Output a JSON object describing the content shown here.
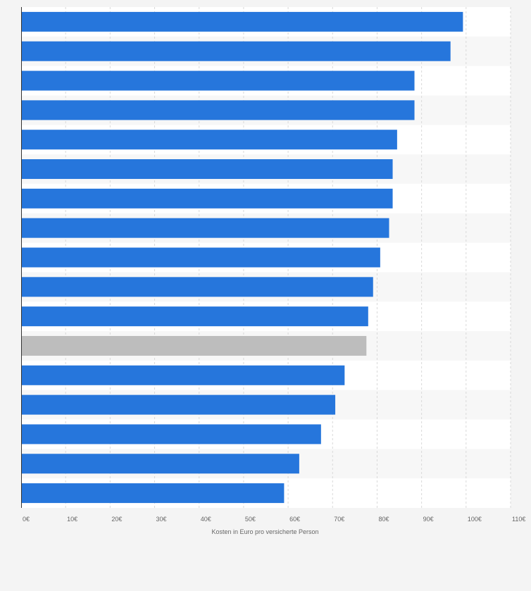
{
  "chart_data": {
    "type": "bar",
    "orientation": "horizontal",
    "categories": [
      "",
      "",
      "",
      "",
      "",
      "",
      "",
      "",
      "",
      "",
      "",
      "",
      "",
      "",
      "",
      "",
      ""
    ],
    "values": [
      99.3,
      96.5,
      88.4,
      88.4,
      84.5,
      83.5,
      83.5,
      82.7,
      80.7,
      79.1,
      78.0,
      77.6,
      72.7,
      70.6,
      67.4,
      62.5,
      59.1
    ],
    "highlight_index": 11,
    "xlim": [
      0,
      110
    ],
    "x_ticks": [
      0,
      10,
      20,
      30,
      40,
      50,
      60,
      70,
      80,
      90,
      100,
      110
    ],
    "x_tick_labels": [
      "0€",
      "10€",
      "20€",
      "30€",
      "40€",
      "50€",
      "60€",
      "70€",
      "80€",
      "90€",
      "100€",
      "110€"
    ],
    "xlabel": "Kosten in Euro pro versicherte Person",
    "ylabel": "",
    "title": "",
    "grid": true,
    "colors": {
      "bar": "#2676dc",
      "highlight": "#bdbdbd",
      "background": "#f4f4f4",
      "plot_background": "#ffffff",
      "row_band": "#f7f7f7",
      "grid": "#d9d9d9",
      "axis": "#333333",
      "text": "#666666"
    }
  }
}
